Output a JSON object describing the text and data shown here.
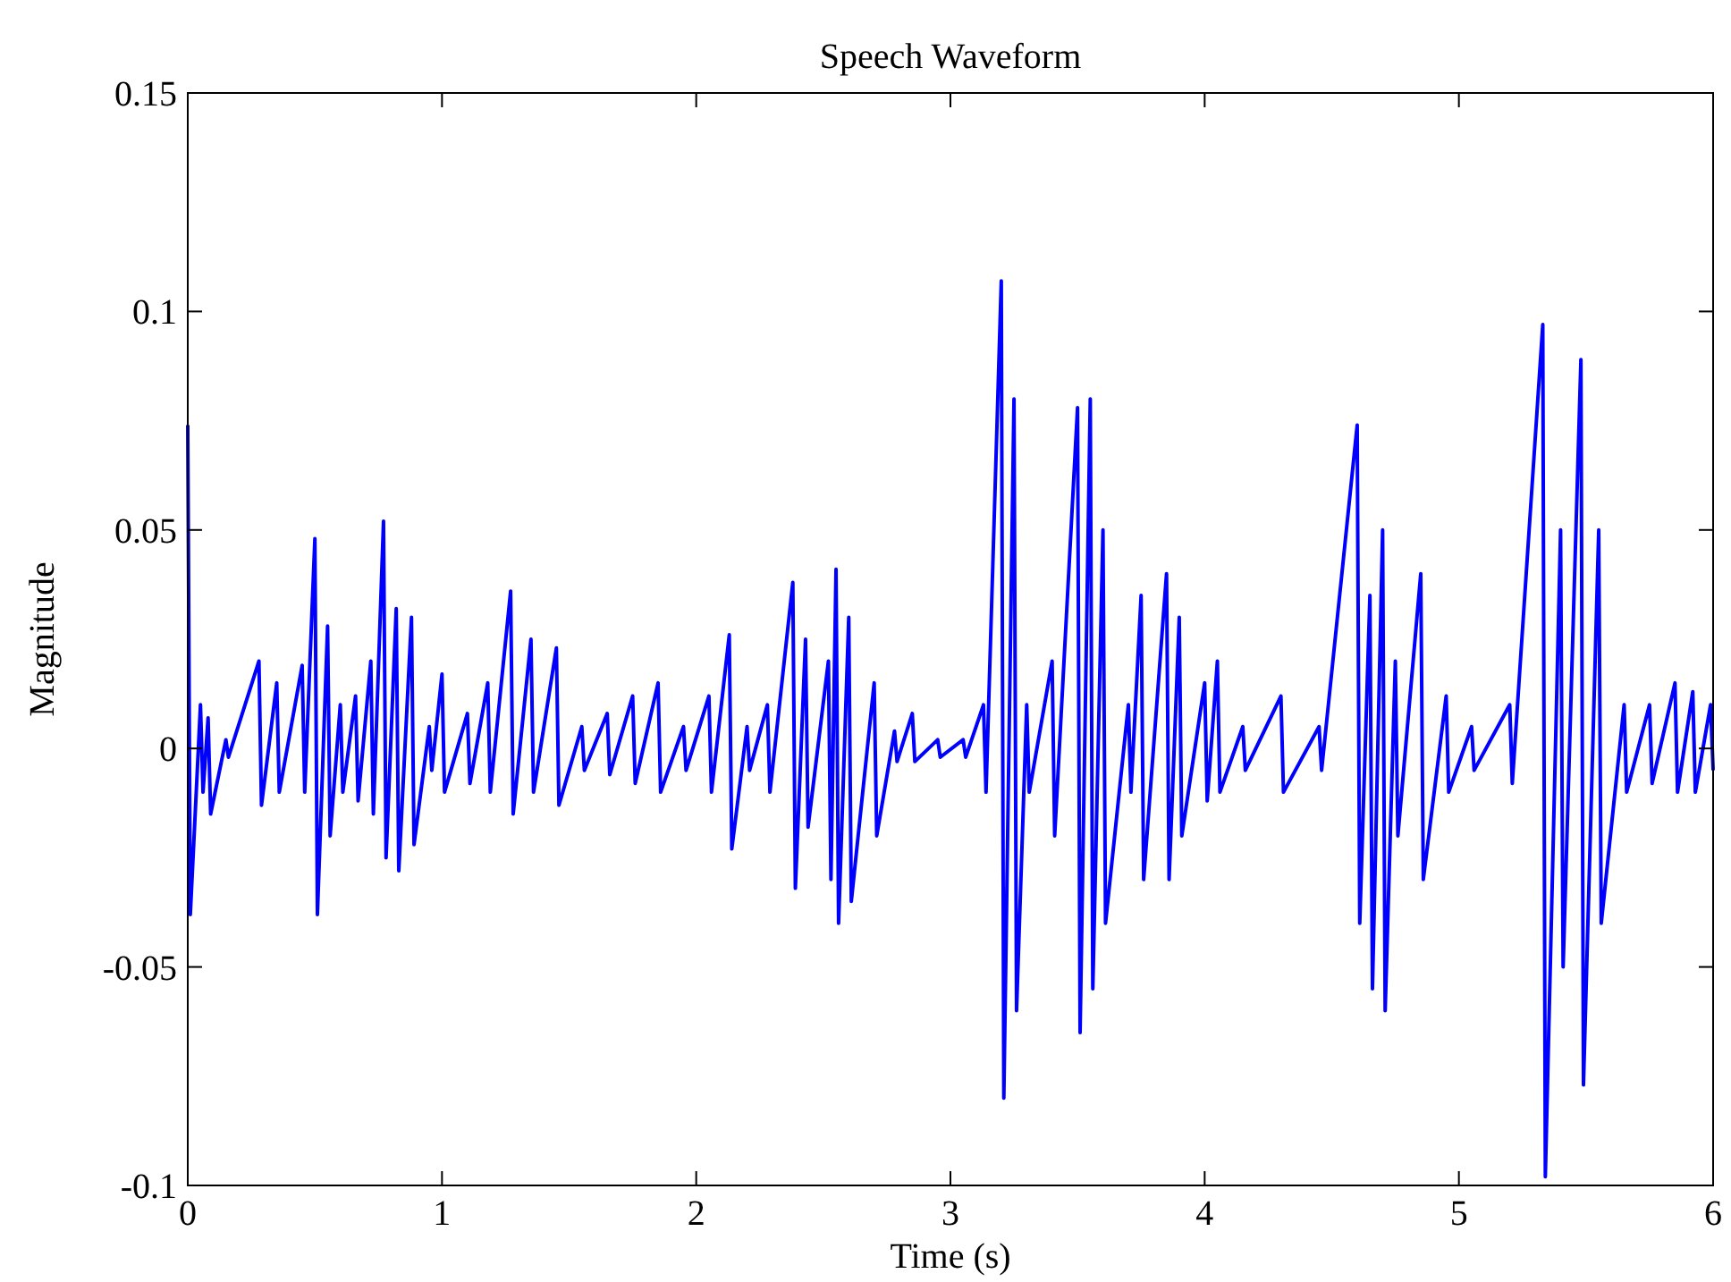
{
  "chart_data": {
    "type": "line",
    "title": "Speech Waveform",
    "xlabel": "Time (s)",
    "ylabel": "Magnitude",
    "xlim": [
      0,
      6
    ],
    "xticks": [
      0,
      1,
      2,
      3,
      4,
      5,
      6
    ],
    "ylim": [
      -0.1,
      0.15
    ],
    "yticks": [
      -0.1,
      -0.05,
      0,
      0.05,
      0.1,
      0.15
    ],
    "grid": false,
    "marker": "none",
    "line_style": "solid",
    "series": [
      {
        "color": "#0000ff",
        "x": [
          0,
          0.01,
          0.05,
          0.06,
          0.08,
          0.09,
          0.15,
          0.16,
          0.28,
          0.29,
          0.35,
          0.36,
          0.45,
          0.46,
          0.5,
          0.51,
          0.55,
          0.56,
          0.6,
          0.61,
          0.66,
          0.67,
          0.72,
          0.73,
          0.77,
          0.78,
          0.82,
          0.83,
          0.88,
          0.89,
          0.95,
          0.96,
          1.0,
          1.01,
          1.1,
          1.11,
          1.18,
          1.19,
          1.27,
          1.28,
          1.35,
          1.36,
          1.45,
          1.46,
          1.55,
          1.56,
          1.65,
          1.66,
          1.75,
          1.76,
          1.85,
          1.86,
          1.95,
          1.96,
          2.05,
          2.06,
          2.13,
          2.14,
          2.2,
          2.21,
          2.28,
          2.29,
          2.38,
          2.39,
          2.43,
          2.44,
          2.52,
          2.53,
          2.55,
          2.56,
          2.6,
          2.61,
          2.7,
          2.71,
          2.78,
          2.79,
          2.85,
          2.86,
          2.95,
          2.96,
          3.05,
          3.06,
          3.13,
          3.14,
          3.2,
          3.21,
          3.25,
          3.26,
          3.3,
          3.31,
          3.4,
          3.41,
          3.5,
          3.51,
          3.55,
          3.56,
          3.6,
          3.61,
          3.7,
          3.71,
          3.75,
          3.76,
          3.85,
          3.86,
          3.9,
          3.91,
          4.0,
          4.01,
          4.05,
          4.06,
          4.15,
          4.16,
          4.3,
          4.31,
          4.45,
          4.46,
          4.6,
          4.61,
          4.65,
          4.66,
          4.7,
          4.71,
          4.75,
          4.76,
          4.85,
          4.86,
          4.95,
          4.96,
          5.05,
          5.06,
          5.2,
          5.21,
          5.33,
          5.34,
          5.4,
          5.41,
          5.48,
          5.49,
          5.55,
          5.56,
          5.65,
          5.66,
          5.75,
          5.76,
          5.85,
          5.86,
          5.92,
          5.93,
          5.99,
          6.0
        ],
        "values": [
          0.074,
          -0.038,
          0.01,
          -0.01,
          0.007,
          -0.015,
          0.002,
          -0.002,
          0.02,
          -0.013,
          0.015,
          -0.01,
          0.019,
          -0.01,
          0.048,
          -0.038,
          0.028,
          -0.02,
          0.01,
          -0.01,
          0.012,
          -0.012,
          0.02,
          -0.015,
          0.052,
          -0.025,
          0.032,
          -0.028,
          0.03,
          -0.022,
          0.005,
          -0.005,
          0.017,
          -0.01,
          0.008,
          -0.008,
          0.015,
          -0.01,
          0.036,
          -0.015,
          0.025,
          -0.01,
          0.023,
          -0.013,
          0.005,
          -0.005,
          0.008,
          -0.006,
          0.012,
          -0.008,
          0.015,
          -0.01,
          0.005,
          -0.005,
          0.012,
          -0.01,
          0.026,
          -0.023,
          0.005,
          -0.005,
          0.01,
          -0.01,
          0.038,
          -0.032,
          0.025,
          -0.018,
          0.02,
          -0.03,
          0.041,
          -0.04,
          0.03,
          -0.035,
          0.015,
          -0.02,
          0.004,
          -0.003,
          0.008,
          -0.003,
          0.002,
          -0.002,
          0.002,
          -0.002,
          0.01,
          -0.01,
          0.107,
          -0.08,
          0.08,
          -0.06,
          0.01,
          -0.01,
          0.02,
          -0.02,
          0.078,
          -0.065,
          0.08,
          -0.055,
          0.05,
          -0.04,
          0.01,
          -0.01,
          0.035,
          -0.03,
          0.04,
          -0.03,
          0.03,
          -0.02,
          0.015,
          -0.012,
          0.02,
          -0.01,
          0.005,
          -0.005,
          0.012,
          -0.01,
          0.005,
          -0.005,
          0.074,
          -0.04,
          0.035,
          -0.055,
          0.05,
          -0.06,
          0.02,
          -0.02,
          0.04,
          -0.03,
          0.012,
          -0.01,
          0.005,
          -0.005,
          0.01,
          -0.008,
          0.097,
          -0.098,
          0.05,
          -0.05,
          0.089,
          -0.077,
          0.05,
          -0.04,
          0.01,
          -0.01,
          0.01,
          -0.008,
          0.015,
          -0.01,
          0.013,
          -0.01,
          0.01,
          -0.005
        ]
      }
    ]
  }
}
